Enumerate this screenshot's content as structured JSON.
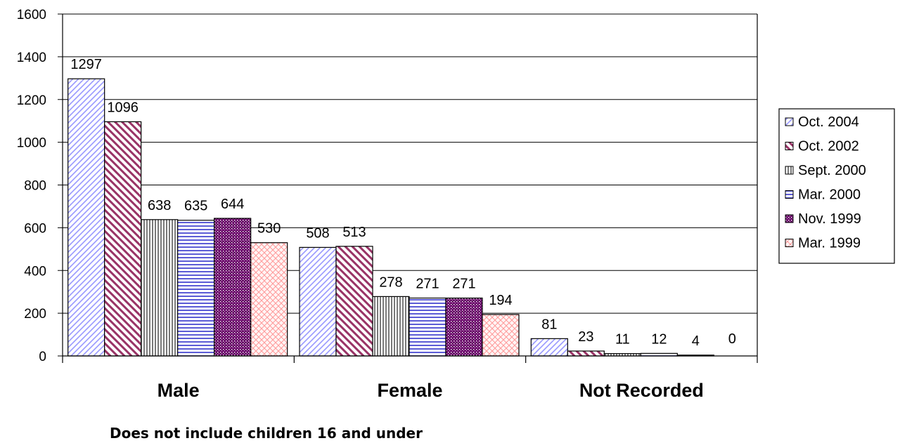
{
  "chart_data": {
    "type": "bar",
    "categories": [
      "Male",
      "Female",
      "Not Recorded"
    ],
    "series": [
      {
        "name": "Oct. 2004",
        "values": [
          1297,
          508,
          81
        ],
        "color": "#9999ff",
        "pattern": "diag-right"
      },
      {
        "name": "Oct. 2002",
        "values": [
          1096,
          513,
          23
        ],
        "color": "#993366",
        "pattern": "diag-left"
      },
      {
        "name": "Sept. 2000",
        "values": [
          638,
          278,
          11
        ],
        "color": "#333333",
        "pattern": "vertical"
      },
      {
        "name": "Mar. 2000",
        "values": [
          635,
          271,
          12
        ],
        "color": "#3333cc",
        "pattern": "horizontal"
      },
      {
        "name": "Nov. 1999",
        "values": [
          644,
          271,
          4
        ],
        "color": "#660066",
        "pattern": "dots"
      },
      {
        "name": "Mar. 1999",
        "values": [
          530,
          194,
          0
        ],
        "color": "#ff9999",
        "pattern": "crosshatch"
      }
    ],
    "ylim": [
      0,
      1600
    ],
    "yticks": [
      0,
      200,
      400,
      600,
      800,
      1000,
      1200,
      1400,
      1600
    ],
    "grid": true,
    "legend": "right",
    "note": "Does not include children 16 and under"
  }
}
